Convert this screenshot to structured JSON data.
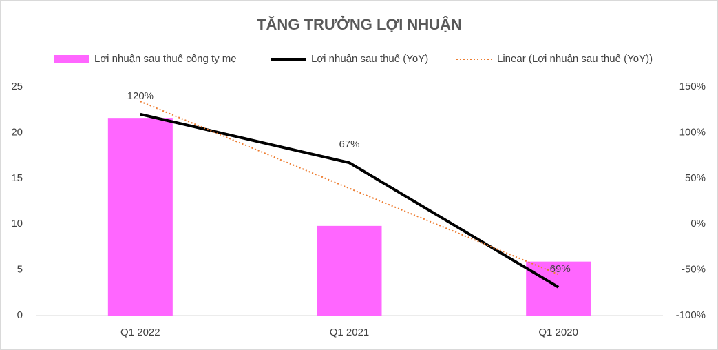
{
  "chart_data": {
    "type": "bar",
    "title": "TĂNG TRƯỞNG LỢI NHUẬN",
    "categories": [
      "Q1 2022",
      "Q1 2021",
      "Q1 2020"
    ],
    "series": [
      {
        "name": "Lợi nhuận sau thuế công ty mẹ",
        "type": "bar",
        "color": "#ff66ff",
        "values": [
          21.6,
          9.8,
          5.9
        ]
      },
      {
        "name": "Lợi nhuận sau thuế (YoY)",
        "type": "line",
        "axis": "y2",
        "color": "#000000",
        "values": [
          120,
          67,
          -69
        ],
        "value_labels": [
          "120%",
          "67%",
          "-69%"
        ]
      },
      {
        "name": "Linear (Lợi nhuận sau thuế (YoY))",
        "type": "line",
        "axis": "y2",
        "color": "#ed7d31",
        "dash": "dotted",
        "values": [
          134,
          39,
          -55
        ]
      }
    ],
    "ylim": [
      0,
      25
    ],
    "yticks": [
      0,
      5,
      10,
      15,
      20,
      25
    ],
    "y2lim": [
      -100,
      150
    ],
    "y2ticks": [
      {
        "value": -100,
        "label": "-100%"
      },
      {
        "value": -50,
        "label": "-50%"
      },
      {
        "value": 0,
        "label": "0%"
      },
      {
        "value": 50,
        "label": "50%"
      },
      {
        "value": 100,
        "label": "100%"
      },
      {
        "value": 150,
        "label": "150%"
      }
    ],
    "grid": false,
    "legend": "top"
  }
}
